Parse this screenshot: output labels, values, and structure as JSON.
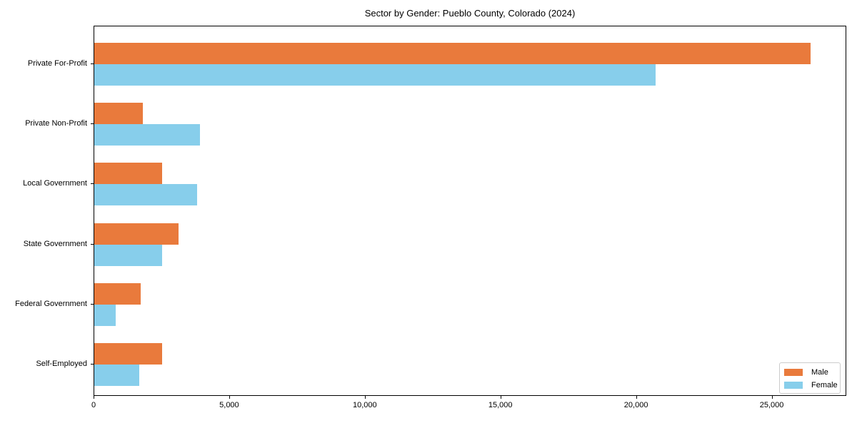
{
  "chart_data": {
    "type": "bar",
    "orientation": "horizontal",
    "title": "Sector by Gender: Pueblo County, Colorado (2024)",
    "categories": [
      "Private For-Profit",
      "Private Non-Profit",
      "Local Government",
      "State Government",
      "Federal Government",
      "Self-Employed"
    ],
    "series": [
      {
        "name": "Male",
        "color": "#E97A3C",
        "values": [
          26400,
          1800,
          2500,
          3100,
          1700,
          2500
        ]
      },
      {
        "name": "Female",
        "color": "#87CEEB",
        "values": [
          20700,
          3900,
          3800,
          2500,
          800,
          1650
        ]
      }
    ],
    "xlabel": "",
    "ylabel": "",
    "xlim": [
      0,
      27750
    ],
    "xticks": [
      0,
      5000,
      10000,
      15000,
      20000,
      25000
    ],
    "xtick_labels": [
      "0",
      "5,000",
      "10,000",
      "15,000",
      "20,000",
      "25,000"
    ],
    "grid": false,
    "legend": {
      "position": "lower right",
      "entries": [
        "Male",
        "Female"
      ]
    }
  },
  "colors": {
    "male": "#E97A3C",
    "female": "#87CEEB",
    "spine": "#000000",
    "legend_border": "#cccccc",
    "background": "#ffffff"
  }
}
